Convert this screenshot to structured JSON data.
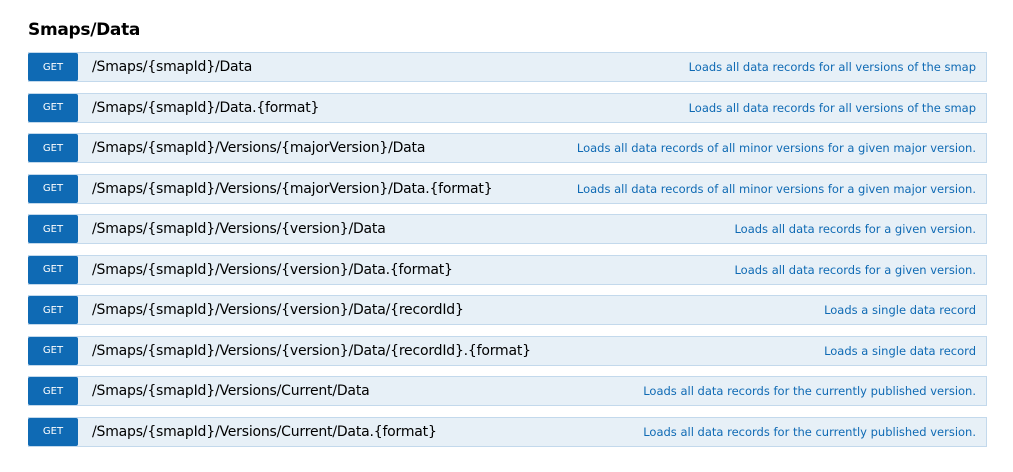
{
  "section": {
    "title": "Smaps/Data"
  },
  "colors": {
    "method_get": "#0f6ab4",
    "row_bg": "#e7f0f7",
    "row_border": "#c3d9ec"
  },
  "operations": [
    {
      "method": "GET",
      "path": "/Smaps/{smapId}/Data",
      "description": "Loads all data records for all versions of the smap"
    },
    {
      "method": "GET",
      "path": "/Smaps/{smapId}/Data.{format}",
      "description": "Loads all data records for all versions of the smap"
    },
    {
      "method": "GET",
      "path": "/Smaps/{smapId}/Versions/{majorVersion}/Data",
      "description": "Loads all data records of all minor versions for a given major version."
    },
    {
      "method": "GET",
      "path": "/Smaps/{smapId}/Versions/{majorVersion}/Data.{format}",
      "description": "Loads all data records of all minor versions for a given major version."
    },
    {
      "method": "GET",
      "path": "/Smaps/{smapId}/Versions/{version}/Data",
      "description": "Loads all data records for a given version."
    },
    {
      "method": "GET",
      "path": "/Smaps/{smapId}/Versions/{version}/Data.{format}",
      "description": "Loads all data records for a given version."
    },
    {
      "method": "GET",
      "path": "/Smaps/{smapId}/Versions/{version}/Data/{recordId}",
      "description": "Loads a single data record"
    },
    {
      "method": "GET",
      "path": "/Smaps/{smapId}/Versions/{version}/Data/{recordId}.{format}",
      "description": "Loads a single data record"
    },
    {
      "method": "GET",
      "path": "/Smaps/{smapId}/Versions/Current/Data",
      "description": "Loads all data records for the currently published version."
    },
    {
      "method": "GET",
      "path": "/Smaps/{smapId}/Versions/Current/Data.{format}",
      "description": "Loads all data records for the currently published version."
    }
  ]
}
